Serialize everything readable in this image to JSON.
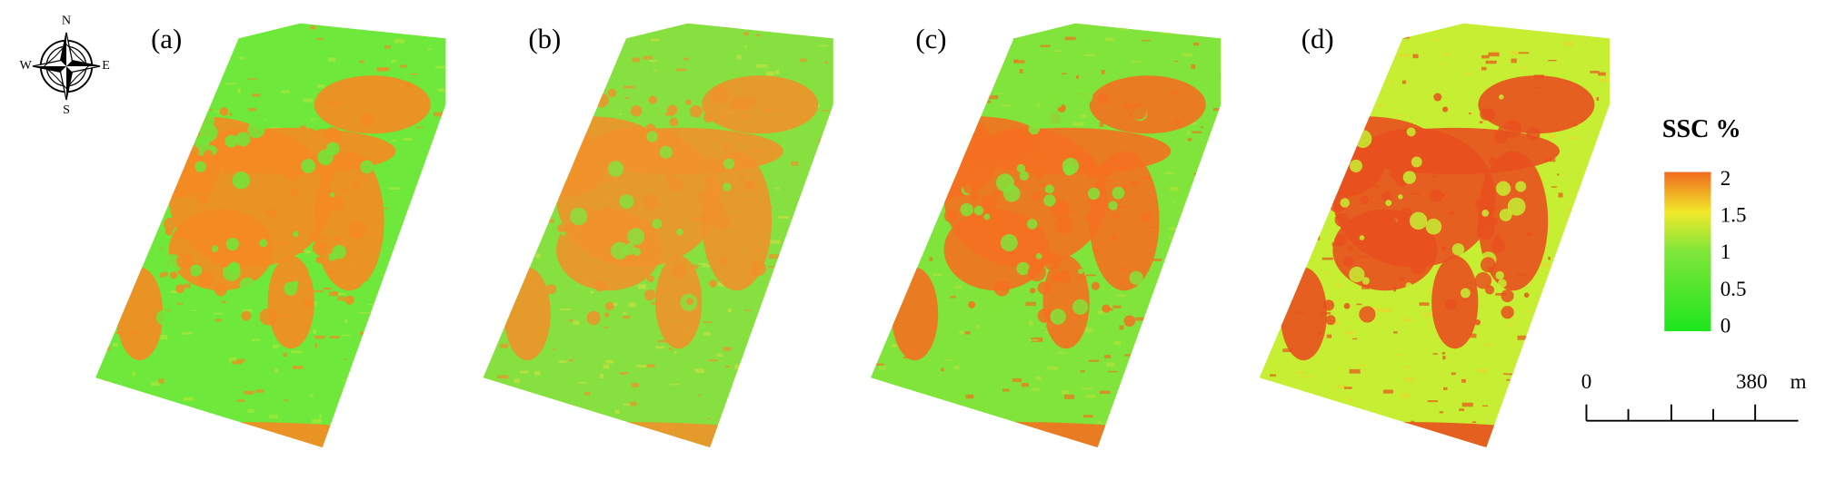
{
  "panels": [
    {
      "label": "(a)"
    },
    {
      "label": "(b)"
    },
    {
      "label": "(c)"
    },
    {
      "label": "(d)"
    }
  ],
  "compass": {
    "north": "N",
    "south": "S",
    "east": "E",
    "west": "W"
  },
  "legend": {
    "title": "SSC %",
    "range": [
      0,
      2
    ],
    "ticks": [
      2,
      1.5,
      1,
      0.5,
      0
    ]
  },
  "scale_bar": {
    "start": 0,
    "end": 380,
    "unit": "m"
  }
}
